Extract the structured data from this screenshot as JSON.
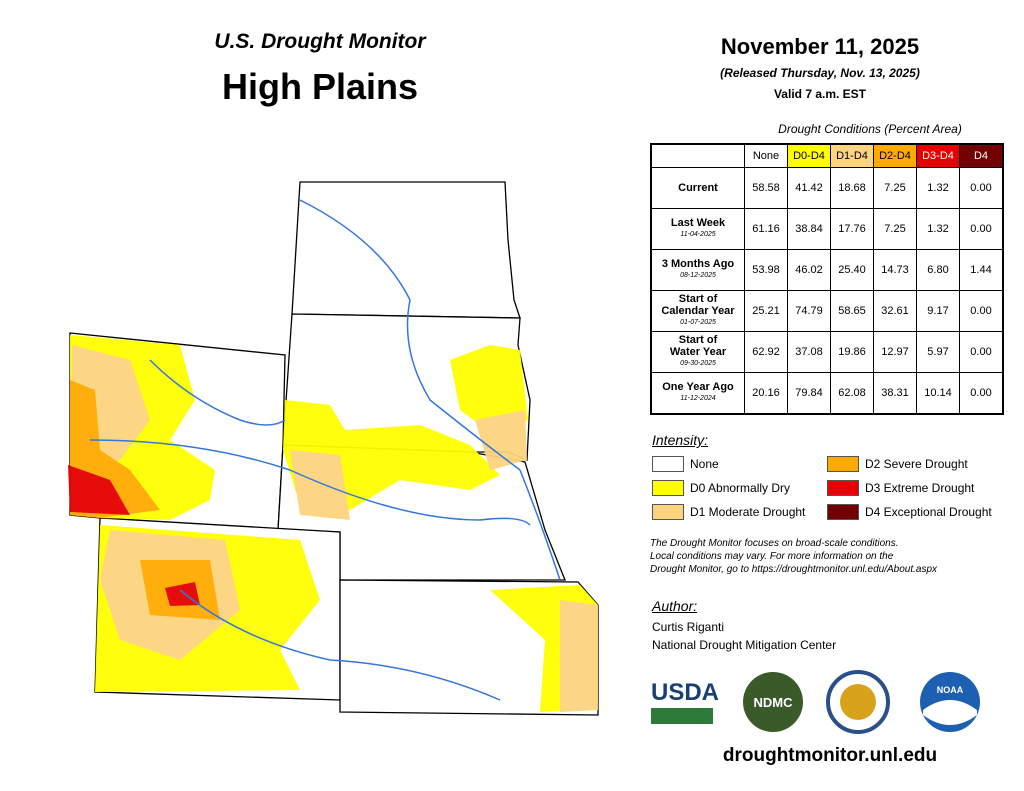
{
  "header": {
    "subtitle": "U.S. Drought Monitor",
    "title": "High Plains"
  },
  "date": {
    "title": "November 11, 2025",
    "released": "(Released Thursday, Nov. 13, 2025)",
    "valid": "Valid 7 a.m. EST"
  },
  "table": {
    "caption": "Drought Conditions (Percent Area)",
    "columns": [
      {
        "label": "None",
        "color": "#ffffff",
        "text_color": "#000000"
      },
      {
        "label": "D0-D4",
        "color": "#ffff00",
        "text_color": "#000000"
      },
      {
        "label": "D1-D4",
        "color": "#fcd37f",
        "text_color": "#000000"
      },
      {
        "label": "D2-D4",
        "color": "#ffaa00",
        "text_color": "#000000"
      },
      {
        "label": "D3-D4",
        "color": "#e60000",
        "text_color": "#ffffff"
      },
      {
        "label": "D4",
        "color": "#730000",
        "text_color": "#ffffff"
      }
    ],
    "rows": [
      {
        "label": [
          "Current"
        ],
        "values": [
          "58.58",
          "41.42",
          "18.68",
          "7.25",
          "1.32",
          "0.00"
        ]
      },
      {
        "label": [
          "Last Week"
        ],
        "date": "11-04-2025",
        "values": [
          "61.16",
          "38.84",
          "17.76",
          "7.25",
          "1.32",
          "0.00"
        ]
      },
      {
        "label": [
          "3 Months Ago"
        ],
        "date": "08-12-2025",
        "values": [
          "53.98",
          "46.02",
          "25.40",
          "14.73",
          "6.80",
          "1.44"
        ]
      },
      {
        "label": [
          "Start of",
          "Calendar Year"
        ],
        "date": "01-07-2025",
        "values": [
          "25.21",
          "74.79",
          "58.65",
          "32.61",
          "9.17",
          "0.00"
        ]
      },
      {
        "label": [
          "Start of",
          "Water Year"
        ],
        "date": "09-30-2025",
        "values": [
          "62.92",
          "37.08",
          "19.86",
          "12.97",
          "5.97",
          "0.00"
        ]
      },
      {
        "label": [
          "One Year Ago"
        ],
        "date": "11-12-2024",
        "values": [
          "20.16",
          "79.84",
          "62.08",
          "38.31",
          "10.14",
          "0.00"
        ]
      }
    ]
  },
  "legend": {
    "title": "Intensity:",
    "items": [
      {
        "label": "None",
        "color": "#ffffff"
      },
      {
        "label": "D0 Abnormally Dry",
        "color": "#ffff00"
      },
      {
        "label": "D1 Moderate Drought",
        "color": "#fcd37f"
      },
      {
        "label": "D2 Severe Drought",
        "color": "#ffaa00"
      },
      {
        "label": "D3 Extreme Drought",
        "color": "#e60000"
      },
      {
        "label": "D4 Exceptional Drought",
        "color": "#730000"
      }
    ]
  },
  "note": [
    "The Drought Monitor focuses on broad-scale conditions.",
    "Local conditions may vary. For more information on the",
    "Drought Monitor, go to https://droughtmonitor.unl.edu/About.aspx"
  ],
  "author": {
    "title": "Author:",
    "lines": [
      "Curtis Riganti",
      "National Drought Mitigation Center"
    ]
  },
  "logos": {
    "usda": "USDA",
    "ndmc": "NDMC",
    "noaa": "NOAA"
  },
  "url": "droughtmonitor.unl.edu"
}
